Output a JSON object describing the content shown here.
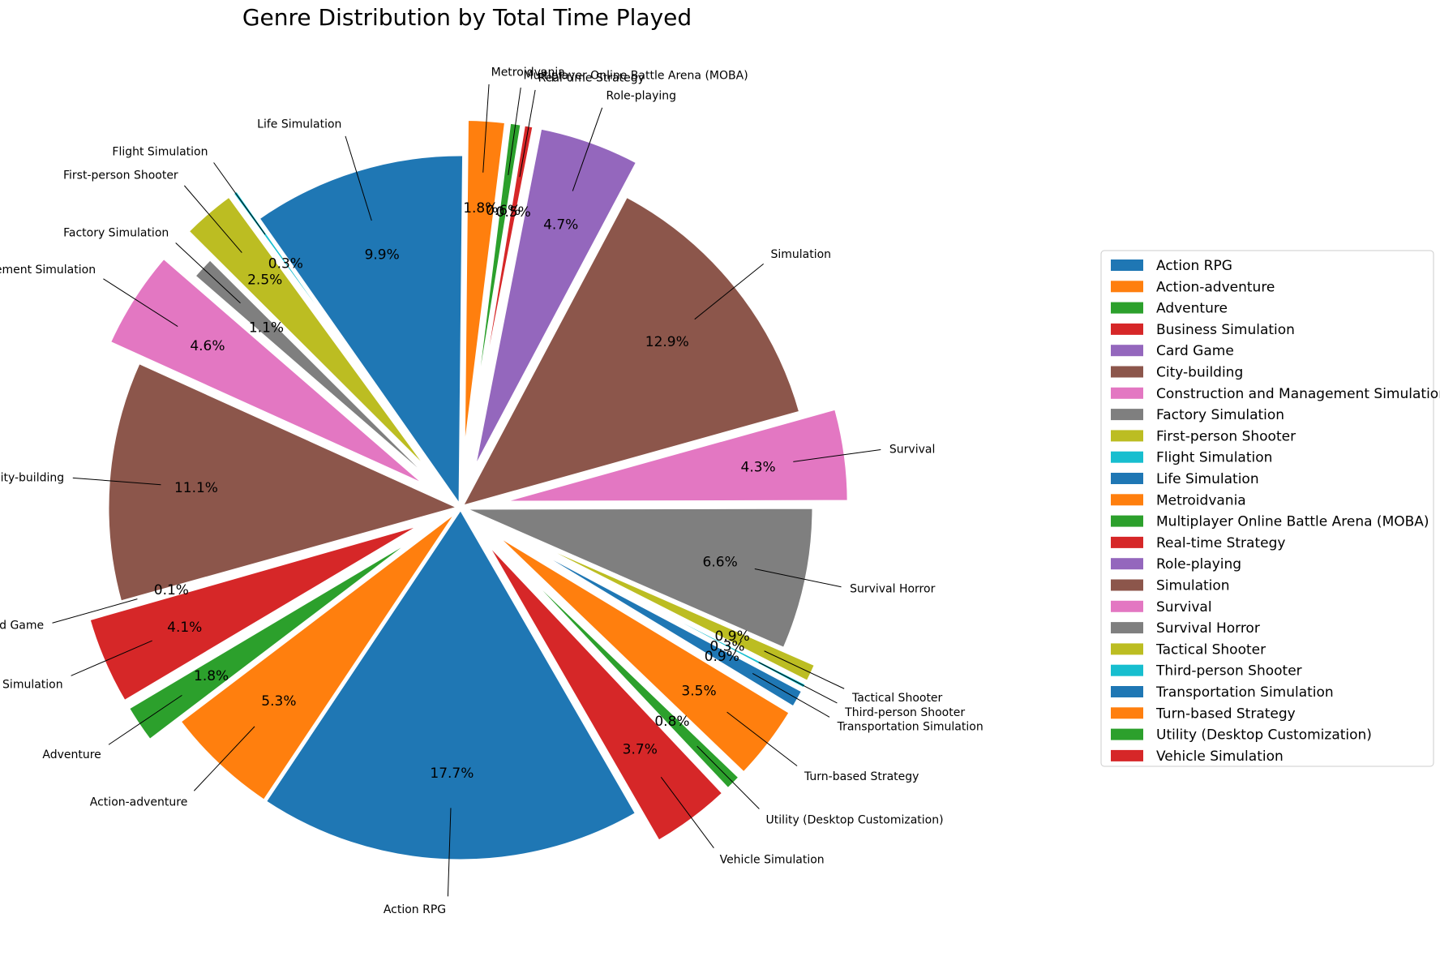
{
  "chart_data": {
    "type": "pie",
    "title": "Genre Distribution by Total Time Played",
    "legend_position": "right",
    "slices": [
      {
        "label": "Action RPG",
        "pct": 17.7,
        "pct_text": "17.7%",
        "color": "#1f77b4",
        "exploded": false
      },
      {
        "label": "Action-adventure",
        "pct": 5.3,
        "pct_text": "5.3%",
        "color": "#ff7f0e",
        "exploded": false
      },
      {
        "label": "Adventure",
        "pct": 1.8,
        "pct_text": "1.8%",
        "color": "#2ca02c",
        "exploded": true
      },
      {
        "label": "Business Simulation",
        "pct": 4.1,
        "pct_text": "4.1%",
        "color": "#d62728",
        "exploded": true
      },
      {
        "label": "Card Game",
        "pct": 0.1,
        "pct_text": "0.1%",
        "color": "#9467bd",
        "exploded": true
      },
      {
        "label": "City-building",
        "pct": 11.1,
        "pct_text": "11.1%",
        "color": "#8c564b",
        "exploded": false
      },
      {
        "label": "Construction and Management Simulation",
        "pct": 4.6,
        "pct_text": "4.6%",
        "color": "#e377c2",
        "exploded": true
      },
      {
        "label": "Factory Simulation",
        "pct": 1.1,
        "pct_text": "1.1%",
        "color": "#7f7f7f",
        "exploded": false
      },
      {
        "label": "First-person Shooter",
        "pct": 2.5,
        "pct_text": "2.5%",
        "color": "#bcbd22",
        "exploded": true
      },
      {
        "label": "Flight Simulation",
        "pct": 0.3,
        "pct_text": "0.3%",
        "color": "#17becf",
        "exploded": true
      },
      {
        "label": "Life Simulation",
        "pct": 9.9,
        "pct_text": "9.9%",
        "color": "#1f77b4",
        "exploded": false
      },
      {
        "label": "Metroidvania",
        "pct": 1.8,
        "pct_text": "1.8%",
        "color": "#ff7f0e",
        "exploded": true
      },
      {
        "label": "Multiplayer Online Battle Arena (MOBA)",
        "pct": 0.6,
        "pct_text": "0.6%",
        "color": "#2ca02c",
        "exploded": true
      },
      {
        "label": "Real-time Strategy",
        "pct": 0.5,
        "pct_text": "0.5%",
        "color": "#d62728",
        "exploded": true
      },
      {
        "label": "Role-playing",
        "pct": 4.7,
        "pct_text": "4.7%",
        "color": "#9467bd",
        "exploded": true
      },
      {
        "label": "Simulation",
        "pct": 12.9,
        "pct_text": "12.9%",
        "color": "#8c564b",
        "exploded": false
      },
      {
        "label": "Survival",
        "pct": 4.3,
        "pct_text": "4.3%",
        "color": "#e377c2",
        "exploded": true
      },
      {
        "label": "Survival Horror",
        "pct": 6.6,
        "pct_text": "6.6%",
        "color": "#7f7f7f",
        "exploded": false
      },
      {
        "label": "Tactical Shooter",
        "pct": 0.9,
        "pct_text": "0.9%",
        "color": "#bcbd22",
        "exploded": true
      },
      {
        "label": "Third-person Shooter",
        "pct": 0.3,
        "pct_text": "0.3%",
        "color": "#17becf",
        "exploded": true
      },
      {
        "label": "Transportation Simulation",
        "pct": 0.9,
        "pct_text": "0.9%",
        "color": "#1f77b4",
        "exploded": true
      },
      {
        "label": "Turn-based Strategy",
        "pct": 3.5,
        "pct_text": "3.5%",
        "color": "#ff7f0e",
        "exploded": true
      },
      {
        "label": "Utility (Desktop Customization)",
        "pct": 0.8,
        "pct_text": "0.8%",
        "color": "#2ca02c",
        "exploded": true
      },
      {
        "label": "Vehicle Simulation",
        "pct": 3.7,
        "pct_text": "3.7%",
        "color": "#d62728",
        "exploded": true
      }
    ]
  }
}
